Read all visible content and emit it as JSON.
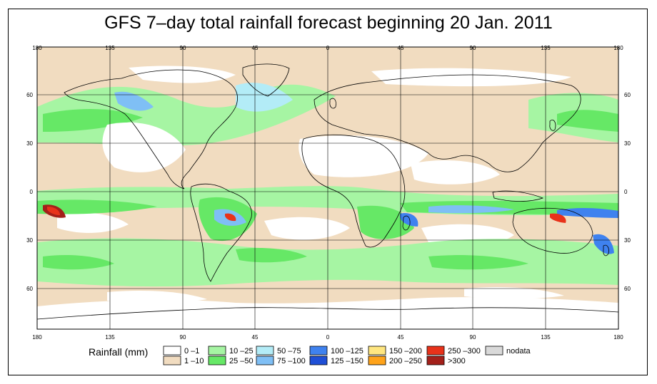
{
  "title": "GFS 7–day total rainfall forecast beginning 20 Jan. 2011",
  "axes": {
    "lon_ticks": [
      "180",
      "135",
      "90",
      "45",
      "0",
      "45",
      "90",
      "135",
      "180"
    ],
    "lat_ticks": [
      "60",
      "30",
      "0",
      "30",
      "60"
    ]
  },
  "legend": {
    "title": "Rainfall (mm)",
    "items": [
      {
        "label": "0 –1",
        "color": "#ffffff"
      },
      {
        "label": "1 –10",
        "color": "#f1dcc0"
      },
      {
        "label": "10 –25",
        "color": "#a6f5a3"
      },
      {
        "label": "25 –50",
        "color": "#66e866"
      },
      {
        "label": "50 –75",
        "color": "#b3ecf7"
      },
      {
        "label": "75 –100",
        "color": "#7fbff5"
      },
      {
        "label": "100 –125",
        "color": "#3f82ef"
      },
      {
        "label": "125 –150",
        "color": "#1f4fd6"
      },
      {
        "label": "150 –200",
        "color": "#ffe680"
      },
      {
        "label": "200 –250",
        "color": "#ffa31a"
      },
      {
        "label": "250 –300",
        "color": "#e8321a"
      },
      {
        "label": ">300",
        "color": "#a3201a"
      },
      {
        "label": "nodata",
        "color": "#d9d9d9"
      }
    ]
  }
}
